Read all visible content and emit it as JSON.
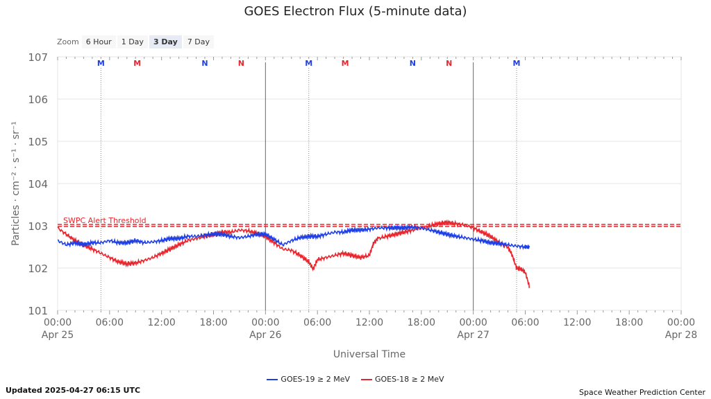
{
  "title": "GOES Electron Flux (5-minute data)",
  "zoom": {
    "label": "Zoom",
    "buttons": [
      "6 Hour",
      "1 Day",
      "3 Day",
      "7 Day"
    ],
    "active": "3 Day"
  },
  "footer": {
    "updated": "Updated 2025-04-27 06:15 UTC",
    "credit": "Space Weather Prediction Center"
  },
  "chart_data": {
    "type": "line",
    "title": "GOES Electron Flux (5-minute data)",
    "xlabel": "Universal Time",
    "ylabel": "Particles · cm⁻² · s⁻¹ · sr⁻¹",
    "y_scale": "log",
    "ylim": [
      101,
      107
    ],
    "y_ticks": [
      {
        "value": 107,
        "label": "107"
      },
      {
        "value": 106,
        "label": "106"
      },
      {
        "value": 105,
        "label": "105"
      },
      {
        "value": 104,
        "label": "104"
      },
      {
        "value": 103,
        "label": "103"
      },
      {
        "value": 102,
        "label": "102"
      },
      {
        "value": 101,
        "label": "101"
      }
    ],
    "xlim": [
      0,
      72
    ],
    "x_ticks": [
      {
        "value": 0,
        "label": "00:00",
        "sub": "Apr 25"
      },
      {
        "value": 6,
        "label": "06:00",
        "sub": ""
      },
      {
        "value": 12,
        "label": "12:00",
        "sub": ""
      },
      {
        "value": 18,
        "label": "18:00",
        "sub": ""
      },
      {
        "value": 24,
        "label": "00:00",
        "sub": "Apr 26"
      },
      {
        "value": 30,
        "label": "06:00",
        "sub": ""
      },
      {
        "value": 36,
        "label": "12:00",
        "sub": ""
      },
      {
        "value": 42,
        "label": "18:00",
        "sub": ""
      },
      {
        "value": 48,
        "label": "00:00",
        "sub": "Apr 27"
      },
      {
        "value": 54,
        "label": "06:00",
        "sub": ""
      },
      {
        "value": 60,
        "label": "12:00",
        "sub": ""
      },
      {
        "value": 66,
        "label": "18:00",
        "sub": ""
      },
      {
        "value": 72,
        "label": "00:00",
        "sub": "Apr 28"
      }
    ],
    "day_boundaries": [
      24,
      48
    ],
    "threshold": {
      "value": 103.0,
      "label": "SWPC Alert Threshold",
      "color": "#e8262e"
    },
    "markers": [
      {
        "x": 5,
        "label": "M",
        "color": "#1e3fe6",
        "dotted": true
      },
      {
        "x": 9.2,
        "label": "M",
        "color": "#e8262e",
        "dotted": false
      },
      {
        "x": 17,
        "label": "N",
        "color": "#1e3fe6",
        "dotted": false
      },
      {
        "x": 21.2,
        "label": "N",
        "color": "#e8262e",
        "dotted": false
      },
      {
        "x": 29,
        "label": "M",
        "color": "#1e3fe6",
        "dotted": true
      },
      {
        "x": 33.2,
        "label": "M",
        "color": "#e8262e",
        "dotted": false
      },
      {
        "x": 41,
        "label": "N",
        "color": "#1e3fe6",
        "dotted": false
      },
      {
        "x": 45.2,
        "label": "N",
        "color": "#e8262e",
        "dotted": false
      },
      {
        "x": 53,
        "label": "M",
        "color": "#1e3fe6",
        "dotted": true
      }
    ],
    "series": [
      {
        "name": "GOES-19 ≥ 2 MeV",
        "color": "#1e3fe6",
        "x": [
          0,
          1,
          2,
          3,
          4,
          5,
          6,
          7,
          8,
          9,
          10,
          11,
          12,
          13,
          14,
          15,
          16,
          17,
          18,
          19,
          20,
          21,
          22,
          23,
          24,
          25,
          26,
          27,
          28,
          29,
          30,
          31,
          32,
          33,
          34,
          35,
          36,
          37,
          38,
          39,
          40,
          41,
          42,
          43,
          44,
          45,
          46,
          47,
          48,
          49,
          50,
          51,
          52,
          53,
          54,
          54.5
        ],
        "y": [
          102.65,
          102.55,
          102.6,
          102.55,
          102.6,
          102.6,
          102.65,
          102.6,
          102.6,
          102.65,
          102.6,
          102.62,
          102.65,
          102.7,
          102.7,
          102.75,
          102.75,
          102.78,
          102.8,
          102.8,
          102.75,
          102.72,
          102.75,
          102.8,
          102.8,
          102.68,
          102.55,
          102.65,
          102.72,
          102.75,
          102.75,
          102.8,
          102.85,
          102.85,
          102.9,
          102.9,
          102.92,
          102.95,
          102.95,
          102.95,
          102.95,
          102.97,
          102.95,
          102.9,
          102.85,
          102.8,
          102.75,
          102.72,
          102.68,
          102.65,
          102.6,
          102.58,
          102.55,
          102.52,
          102.5,
          102.5
        ]
      },
      {
        "name": "GOES-18 ≥ 2 MeV",
        "color": "#e8262e",
        "x": [
          0,
          1,
          2,
          3,
          4,
          5,
          6,
          7,
          8,
          9,
          10,
          11,
          12,
          13,
          14,
          15,
          16,
          17,
          18,
          19,
          20,
          21,
          22,
          23,
          24,
          25,
          26,
          27,
          28,
          29,
          29.5,
          30,
          31,
          32,
          33,
          34,
          35,
          36,
          36.5,
          37,
          38,
          39,
          40,
          41,
          42,
          43,
          44,
          45,
          46,
          47,
          48,
          49,
          50,
          51,
          52,
          52.5,
          53,
          53.5,
          54,
          54.5
        ],
        "y": [
          102.95,
          102.8,
          102.65,
          102.55,
          102.45,
          102.35,
          102.25,
          102.15,
          102.1,
          102.12,
          102.18,
          102.25,
          102.35,
          102.45,
          102.55,
          102.65,
          102.7,
          102.75,
          102.8,
          102.85,
          102.85,
          102.9,
          102.88,
          102.82,
          102.75,
          102.6,
          102.45,
          102.42,
          102.3,
          102.15,
          101.98,
          102.2,
          102.25,
          102.3,
          102.35,
          102.3,
          102.25,
          102.3,
          102.6,
          102.7,
          102.75,
          102.8,
          102.85,
          102.9,
          102.95,
          103.0,
          103.05,
          103.08,
          103.05,
          103.02,
          102.95,
          102.85,
          102.75,
          102.6,
          102.5,
          102.3,
          102.0,
          101.98,
          101.9,
          101.55
        ]
      }
    ]
  }
}
